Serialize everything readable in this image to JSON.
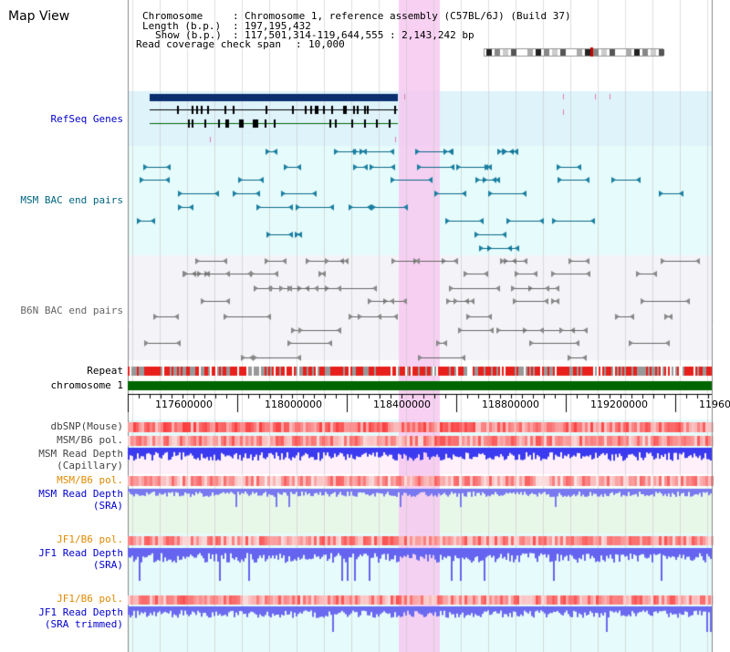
{
  "page": {
    "title": "Map View"
  },
  "info": {
    "chromosome_key": "Chromosome",
    "chromosome_val": "Chromosome 1, reference assembly (C57BL/6J) (Build 37)",
    "length_key": "Length (b.p.)",
    "length_val": "197,195,432",
    "show_key": "Show (b.p.)",
    "show_val": "117,501,314-119,644,555 : 2,143,242 bp",
    "coverage_key": "Read coverage check span",
    "coverage_val": "10,000"
  },
  "tracks": {
    "refseq": "RefSeq Genes",
    "msm_bac": "MSM BAC end pairs",
    "b6n_bac": "B6N BAC end pairs",
    "repeat": "Repeat",
    "chromosome": "chromosome 1",
    "dbsnp": "dbSNP(Mouse)",
    "msm_b6_pol_1": "MSM/B6 pol.",
    "msm_depth_cap_1": "MSM Read Depth",
    "msm_depth_cap_2": "(Capillary)",
    "msm_b6_pol_2": "MSM/B6 pol.",
    "msm_depth_sra_1": "MSM Read Depth",
    "msm_depth_sra_2": "(SRA)",
    "jf1_b6_pol_1": "JF1/B6 pol.",
    "jf1_depth_sra_1": "JF1 Read Depth",
    "jf1_depth_sra_2": "(SRA)",
    "jf1_b6_pol_2": "JF1/B6 pol.",
    "jf1_depth_trim_1": "JF1 Read Depth",
    "jf1_depth_trim_2": "(SRA trimmed)"
  },
  "axis": {
    "ticks": [
      "117600000",
      "118000000",
      "118400000",
      "118800000",
      "119200000",
      "11960"
    ]
  },
  "colors": {
    "refseq_label": "#0000cc",
    "msm_label": "#006680",
    "b6n_label": "#666666",
    "pol_label": "#e08a00",
    "depth_label": "#0000cc",
    "highlight": "#f6d4f2",
    "chromosome_bar": "#007000"
  }
}
